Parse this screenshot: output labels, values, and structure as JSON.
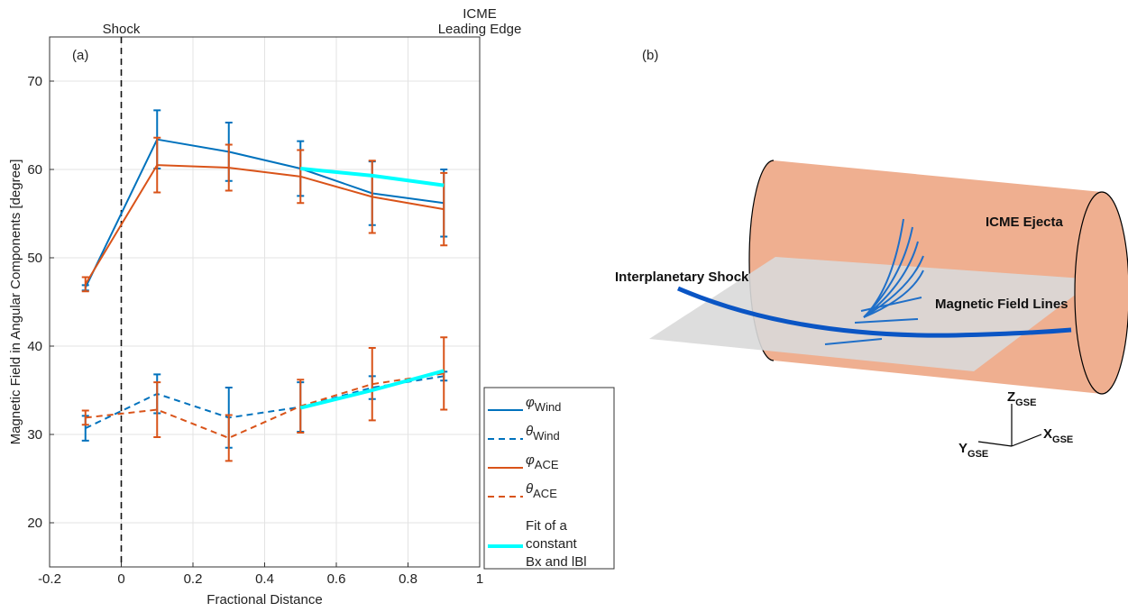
{
  "chart_data": {
    "type": "line",
    "x_label": "Fractional Distance",
    "y_label": "Magnetic Field in Angular Components [degree]",
    "panel_label": "(a)",
    "x": [
      -0.1,
      0.1,
      0.3,
      0.5,
      0.7,
      0.9
    ],
    "xlim": [
      -0.2,
      1
    ],
    "xticks": [
      -0.2,
      0,
      0.2,
      0.4,
      0.6,
      0.8,
      1
    ],
    "ylim": [
      15,
      75
    ],
    "yticks": [
      20,
      30,
      40,
      50,
      60,
      70
    ],
    "grid": true,
    "annotations": [
      {
        "x": 0,
        "lines": [
          "Shock"
        ],
        "dashed_line": true
      },
      {
        "x": 1,
        "lines": [
          "ICME",
          "Leading Edge"
        ],
        "dashed_line": false
      }
    ],
    "series": [
      {
        "symbol": "φ",
        "subscript": "Wind",
        "color": "#0072BD",
        "dash": false,
        "width": 2,
        "values": [
          46.6,
          63.4,
          62.0,
          60.1,
          57.3,
          56.2
        ],
        "errors": [
          0.3,
          3.3,
          3.3,
          3.1,
          3.6,
          3.8
        ]
      },
      {
        "symbol": "θ",
        "subscript": "Wind",
        "color": "#0072BD",
        "dash": true,
        "width": 2,
        "values": [
          30.7,
          34.6,
          31.9,
          33.1,
          35.3,
          36.6
        ],
        "errors": [
          1.4,
          2.2,
          3.4,
          2.8,
          1.3,
          0.5
        ]
      },
      {
        "symbol": "φ",
        "subscript": "ACE",
        "color": "#D95319",
        "dash": false,
        "width": 2,
        "values": [
          47.0,
          60.5,
          60.2,
          59.2,
          56.9,
          55.5
        ],
        "errors": [
          0.8,
          3.1,
          2.6,
          3.0,
          4.1,
          4.1
        ]
      },
      {
        "symbol": "θ",
        "subscript": "ACE",
        "color": "#D95319",
        "dash": true,
        "width": 2,
        "values": [
          31.9,
          32.8,
          29.6,
          33.2,
          35.7,
          36.9
        ],
        "errors": [
          0.8,
          3.1,
          2.6,
          3.0,
          4.1,
          4.1
        ]
      },
      {
        "name": [
          "Fit of a",
          "constant",
          " Bx and lBl"
        ],
        "color": "#00FFFF",
        "dash": false,
        "width": 4,
        "x": [
          0.5,
          0.7,
          0.9
        ],
        "values": [
          60.1,
          59.3,
          58.2
        ]
      },
      {
        "color": "#00FFFF",
        "dash": false,
        "width": 4,
        "x": [
          0.5,
          0.7,
          0.9
        ],
        "values": [
          33.0,
          35.0,
          37.2
        ]
      }
    ]
  },
  "diagram": {
    "panel_label": "(b)",
    "shock_label": "Interplanetary Shock",
    "ejecta_label": "ICME Ejecta",
    "field_label": "Magnetic Field Lines",
    "axes": [
      {
        "symbol": "Z",
        "subscript": "GSE"
      },
      {
        "symbol": "X",
        "subscript": "GSE"
      },
      {
        "symbol": "Y",
        "subscript": "GSE"
      }
    ]
  }
}
